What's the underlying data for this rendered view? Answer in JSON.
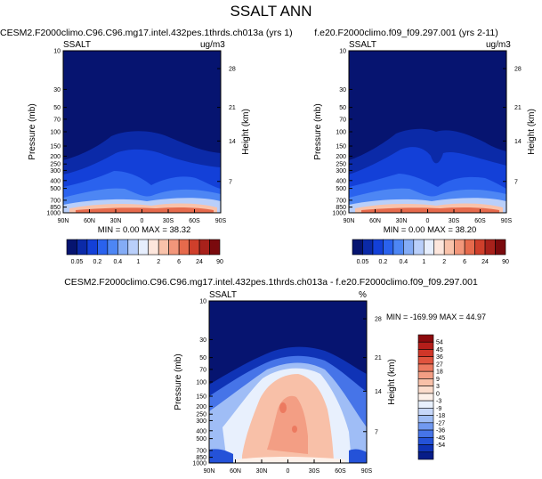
{
  "title": "SSALT ANN",
  "panels": [
    {
      "id": "left",
      "title": "CESM2.F2000climo.C96.C96.mg17.intel.432pes.1thrds.ch013a (yrs 1)",
      "variable": "SSALT",
      "units": "ug/m3",
      "stats": "MIN =   0.00  MAX =  38.32"
    },
    {
      "id": "right",
      "title": "f.e20.F2000climo.f09_f09.297.001 (yrs 2-11)",
      "variable": "SSALT",
      "units": "ug/m3",
      "stats": "MIN =   0.00  MAX =  38.20"
    },
    {
      "id": "diff",
      "title": "CESM2.F2000climo.C96.C96.mg17.intel.432pes.1thrds.ch013a - f.e20.F2000climo.f09_f09.297.001",
      "variable": "SSALT",
      "units": "%",
      "stats": "MIN = -169.99  MAX =  44.97"
    }
  ],
  "chart_data": [
    {
      "type": "heatmap",
      "panel": "left",
      "title": "CESM2.F2000climo.C96.C96.mg17.intel.432pes.1thrds.ch013a (yrs 1)",
      "xlabel": "",
      "ylabel": "Pressure (mb)",
      "y2label": "Height (km)",
      "xticks": [
        "90N",
        "60N",
        "30N",
        "0",
        "30S",
        "60S",
        "90S"
      ],
      "xvalues": [
        90,
        60,
        30,
        0,
        -30,
        -60,
        -90
      ],
      "yticks": [
        "10",
        "30",
        "50",
        "70",
        "100",
        "150",
        "200",
        "250",
        "300",
        "400",
        "500",
        "700",
        "850",
        "1000"
      ],
      "yvalues": [
        10,
        30,
        50,
        70,
        100,
        150,
        200,
        250,
        300,
        400,
        500,
        700,
        850,
        1000
      ],
      "y2ticks": [
        "28",
        "21",
        "14",
        "7"
      ],
      "ylim": [
        10,
        1000
      ],
      "min": 0.0,
      "max": 38.32
    },
    {
      "type": "heatmap",
      "panel": "right",
      "title": "f.e20.F2000climo.f09_f09.297.001 (yrs 2-11)",
      "xlabel": "",
      "ylabel": "Pressure (mb)",
      "y2label": "Height (km)",
      "xticks": [
        "90N",
        "60N",
        "30N",
        "0",
        "30S",
        "60S",
        "90S"
      ],
      "xvalues": [
        90,
        60,
        30,
        0,
        -30,
        -60,
        -90
      ],
      "yticks": [
        "10",
        "30",
        "50",
        "70",
        "100",
        "150",
        "200",
        "250",
        "300",
        "400",
        "500",
        "700",
        "850",
        "1000"
      ],
      "yvalues": [
        10,
        30,
        50,
        70,
        100,
        150,
        200,
        250,
        300,
        400,
        500,
        700,
        850,
        1000
      ],
      "y2ticks": [
        "28",
        "21",
        "14",
        "7"
      ],
      "ylim": [
        10,
        1000
      ],
      "min": 0.0,
      "max": 38.2
    },
    {
      "type": "heatmap",
      "panel": "diff",
      "title": "CESM2.F2000climo.C96.C96.mg17.intel.432pes.1thrds.ch013a - f.e20.F2000climo.f09_f09.297.001",
      "xlabel": "",
      "ylabel": "Pressure (mb)",
      "y2label": "Height (km)",
      "xticks": [
        "90N",
        "60N",
        "30N",
        "0",
        "30S",
        "60S",
        "90S"
      ],
      "xvalues": [
        90,
        60,
        30,
        0,
        -30,
        -60,
        -90
      ],
      "yticks": [
        "10",
        "30",
        "50",
        "70",
        "100",
        "150",
        "200",
        "250",
        "300",
        "400",
        "500",
        "700",
        "850",
        "1000"
      ],
      "yvalues": [
        10,
        30,
        50,
        70,
        100,
        150,
        200,
        250,
        300,
        400,
        500,
        700,
        850,
        1000
      ],
      "y2ticks": [
        "28",
        "21",
        "14",
        "7"
      ],
      "ylim": [
        10,
        1000
      ],
      "min": -169.99,
      "max": 44.97
    }
  ],
  "colorbar_main": {
    "labels": [
      "0.05",
      "0.2",
      "0.4",
      "1",
      "2",
      "6",
      "24",
      "90"
    ],
    "colors": [
      "#061470",
      "#0b2aa8",
      "#1340d8",
      "#2a62ee",
      "#4d86f4",
      "#84acf6",
      "#b9cffa",
      "#e6eefd",
      "#fde6dc",
      "#f9c2aa",
      "#f2967a",
      "#e66a4c",
      "#cf3f2b",
      "#a8211b",
      "#7a0a0d"
    ]
  },
  "colorbar_diff": {
    "labels": [
      "54",
      "45",
      "36",
      "27",
      "18",
      "9",
      "3",
      "0",
      "-3",
      "-9",
      "-18",
      "-27",
      "-36",
      "-45",
      "-54"
    ],
    "colors": [
      "#8c0a0d",
      "#b51e1a",
      "#d03628",
      "#e0543e",
      "#ec7a60",
      "#f39e84",
      "#f8c0a8",
      "#fbdccc",
      "#fdf1ea",
      "#e8f0fd",
      "#c7d8fa",
      "#9fbdf6",
      "#7199f0",
      "#4674e8",
      "#2452d8",
      "#0f33b6",
      "#071d88"
    ]
  }
}
